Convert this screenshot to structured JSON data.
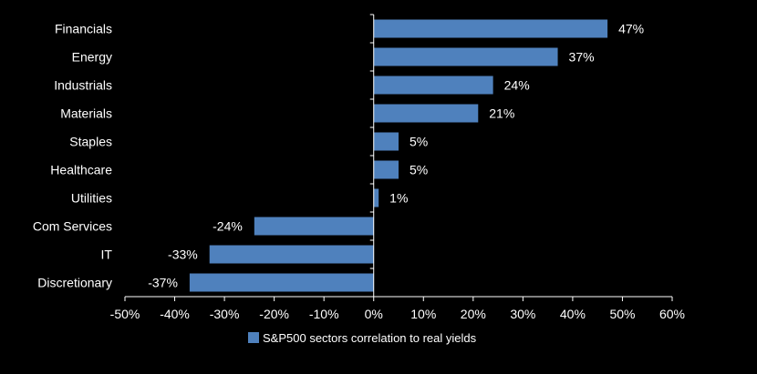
{
  "chart_data": {
    "type": "bar",
    "orientation": "horizontal",
    "title": "",
    "xlabel": "",
    "ylabel": "",
    "xlim": [
      -0.5,
      0.6
    ],
    "x_ticks": [
      -0.5,
      -0.4,
      -0.3,
      -0.2,
      -0.1,
      0,
      0.1,
      0.2,
      0.3,
      0.4,
      0.5,
      0.6
    ],
    "x_tick_labels": [
      "-50%",
      "-40%",
      "-30%",
      "-20%",
      "-10%",
      "0%",
      "10%",
      "20%",
      "30%",
      "40%",
      "50%",
      "60%"
    ],
    "grid": false,
    "legend_position": "bottom",
    "categories": [
      "Financials",
      "Energy",
      "Industrials",
      "Materials",
      "Staples",
      "Healthcare",
      "Utilities",
      "Com Services",
      "IT",
      "Discretionary"
    ],
    "series": [
      {
        "name": "S&P500 sectors correlation to real yields",
        "color": "#4f81bd",
        "values": [
          0.47,
          0.37,
          0.24,
          0.21,
          0.05,
          0.05,
          0.01,
          -0.24,
          -0.33,
          -0.37
        ],
        "labels": [
          "47%",
          "37%",
          "24%",
          "21%",
          "5%",
          "5%",
          "1%",
          "-24%",
          "-33%",
          "-37%"
        ]
      }
    ]
  }
}
